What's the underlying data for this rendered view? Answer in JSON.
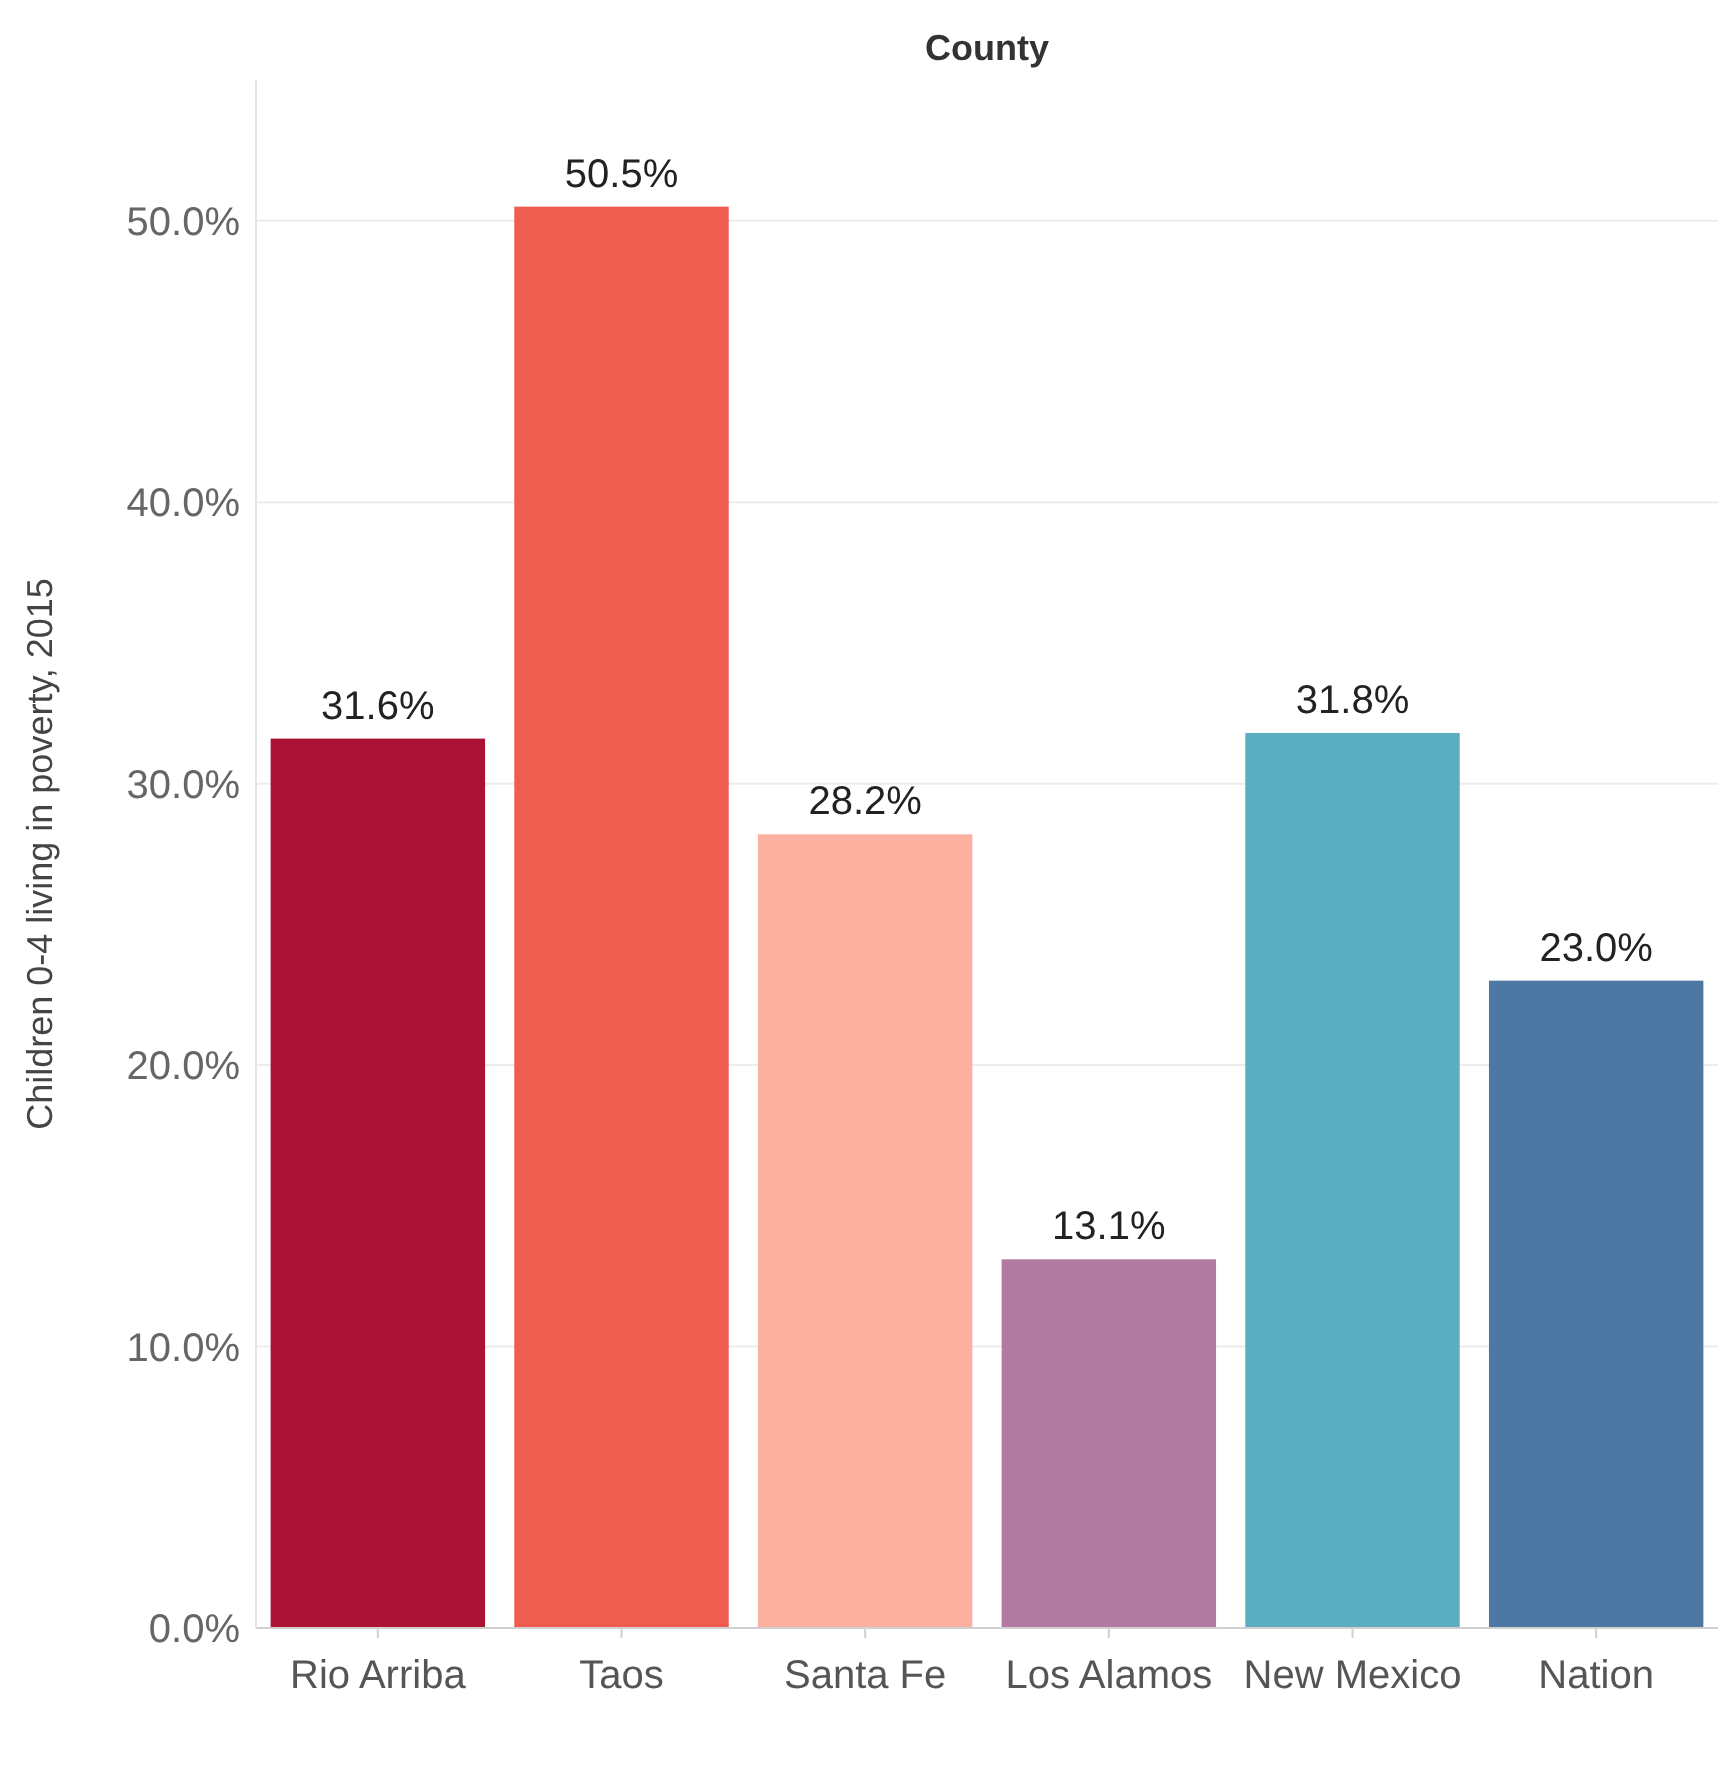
{
  "chart_data": {
    "type": "bar",
    "title": "County",
    "ylabel": "Children 0-4 living in poverty, 2015",
    "categories": [
      "Rio Arriba",
      "Taos",
      "Santa Fe",
      "Los Alamos",
      "New Mexico",
      "Nation"
    ],
    "values": [
      31.6,
      50.5,
      28.2,
      13.1,
      31.8,
      23.0
    ],
    "colors": [
      "#ab1236",
      "#ef5d50",
      "#fbb0a0",
      "#b07aa1",
      "#5aaebf",
      "#4e78a4"
    ],
    "value_labels": [
      "31.6%",
      "50.5%",
      "28.2%",
      "13.1%",
      "31.8%",
      "23.0%"
    ],
    "ylim": [
      0,
      55
    ],
    "yticks": [
      {
        "value": 0,
        "label": "0.0%"
      },
      {
        "value": 10,
        "label": "10.0%"
      },
      {
        "value": 20,
        "label": "20.0%"
      },
      {
        "value": 30,
        "label": "30.0%"
      },
      {
        "value": 40,
        "label": "40.0%"
      },
      {
        "value": 50,
        "label": "50.0%"
      }
    ],
    "grid": "y"
  }
}
